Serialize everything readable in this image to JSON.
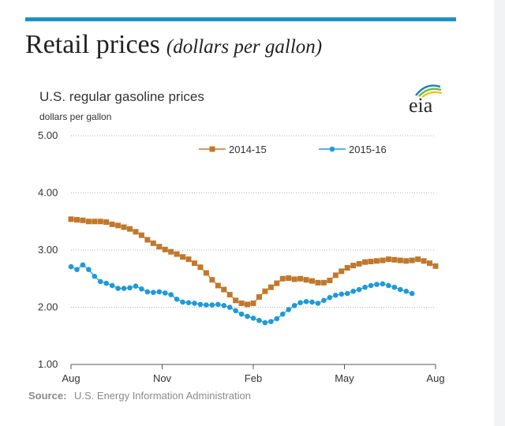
{
  "page": {
    "heading_main": "Retail prices",
    "heading_sub": "(dollars per gallon)",
    "accent_color": "#1e90c8"
  },
  "logo": {
    "text": "eia",
    "colors": [
      "#1f7bc2",
      "#6abf3f",
      "#f6c020"
    ]
  },
  "chart_data": {
    "type": "line",
    "title": "U.S. regular gasoline prices",
    "subtitle": "dollars per gallon",
    "ylim": [
      1.0,
      5.0
    ],
    "yticks": [
      "5.00",
      "4.00",
      "3.00",
      "2.00",
      "1.00"
    ],
    "xticks": [
      "Aug",
      "Nov",
      "Feb",
      "May",
      "Aug"
    ],
    "grid": "horizontal-dotted",
    "legend": "top-right",
    "source_label": "Source:",
    "source_text": "U.S. Energy Information Administration",
    "series": [
      {
        "name": "2014-15",
        "color": "#c0782c",
        "marker": "square",
        "values": [
          3.54,
          3.53,
          3.52,
          3.5,
          3.5,
          3.5,
          3.49,
          3.45,
          3.43,
          3.4,
          3.37,
          3.32,
          3.26,
          3.18,
          3.12,
          3.06,
          3.01,
          2.97,
          2.93,
          2.88,
          2.84,
          2.77,
          2.7,
          2.6,
          2.48,
          2.38,
          2.31,
          2.22,
          2.12,
          2.07,
          2.05,
          2.07,
          2.18,
          2.28,
          2.35,
          2.42,
          2.5,
          2.51,
          2.49,
          2.5,
          2.48,
          2.46,
          2.43,
          2.43,
          2.47,
          2.56,
          2.63,
          2.69,
          2.73,
          2.76,
          2.79,
          2.8,
          2.81,
          2.82,
          2.84,
          2.83,
          2.82,
          2.81,
          2.82,
          2.84,
          2.81,
          2.77,
          2.72
        ]
      },
      {
        "name": "2015-16",
        "color": "#1f9ad6",
        "marker": "circle",
        "values": [
          2.71,
          2.66,
          2.74,
          2.66,
          2.54,
          2.45,
          2.42,
          2.38,
          2.33,
          2.33,
          2.34,
          2.37,
          2.32,
          2.27,
          2.26,
          2.27,
          2.25,
          2.22,
          2.14,
          2.09,
          2.08,
          2.07,
          2.05,
          2.04,
          2.04,
          2.05,
          2.03,
          2.0,
          1.94,
          1.88,
          1.84,
          1.81,
          1.77,
          1.73,
          1.75,
          1.8,
          1.88,
          1.96,
          2.03,
          2.08,
          2.1,
          2.09,
          2.07,
          2.12,
          2.17,
          2.21,
          2.23,
          2.24,
          2.28,
          2.31,
          2.35,
          2.38,
          2.4,
          2.41,
          2.38,
          2.35,
          2.31,
          2.28,
          2.24
        ]
      }
    ]
  }
}
